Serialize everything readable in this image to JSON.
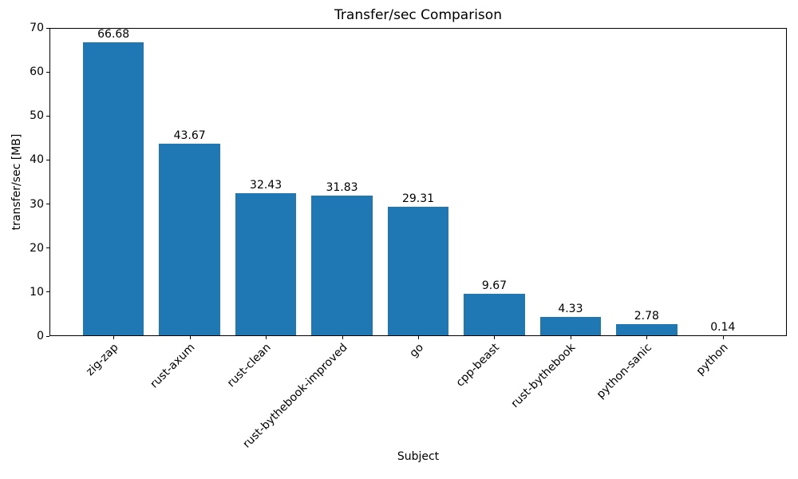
{
  "chart_data": {
    "type": "bar",
    "title": "Transfer/sec Comparison",
    "xlabel": "Subject",
    "ylabel": "transfer/sec [MB]",
    "categories": [
      "zig-zap",
      "rust-axum",
      "rust-clean",
      "rust-bythebook-improved",
      "go",
      "cpp-beast",
      "rust-bythebook",
      "python-sanic",
      "python"
    ],
    "values": [
      66.68,
      43.67,
      32.43,
      31.83,
      29.31,
      9.67,
      4.33,
      2.78,
      0.14
    ],
    "value_label_decimals": 2,
    "ylim": [
      0,
      70
    ],
    "yticks": [
      0,
      10,
      20,
      30,
      40,
      50,
      60,
      70
    ],
    "xlim": [
      -0.84,
      8.84
    ],
    "bar_rel_width": 0.8,
    "x_tick_rotation_deg": 45,
    "grid": false,
    "legend": null,
    "bar_color": "#1f77b4",
    "text_color": "#000000",
    "background_color": "#ffffff"
  }
}
